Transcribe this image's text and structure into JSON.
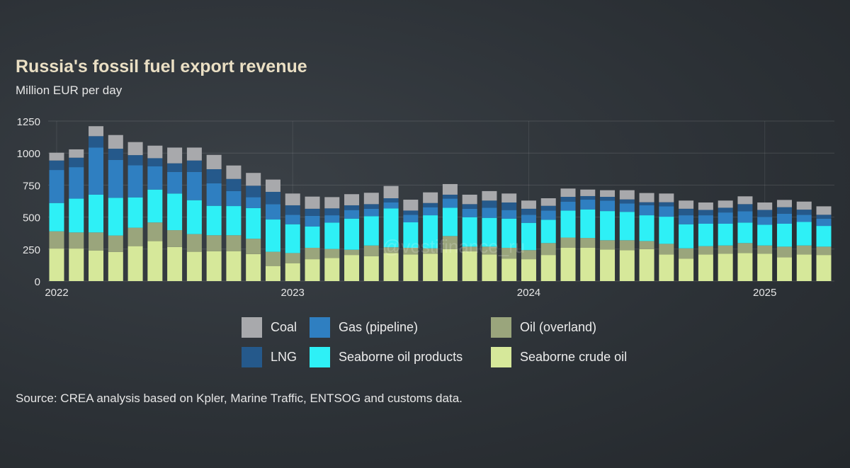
{
  "title": "Russia's fossil fuel export revenue",
  "subtitle": "Million EUR per day",
  "source": "Source: CREA analysis based on Kpler, Marine Traffic, ENTSOG and customs data.",
  "watermark": "@vestifinance_ru",
  "chart_data": {
    "type": "bar",
    "stacked": true,
    "title": "Russia's fossil fuel export revenue",
    "ylabel": "Million EUR per day",
    "xlabel": "",
    "ylim": [
      0,
      1250
    ],
    "yticks": [
      0,
      250,
      500,
      750,
      1000,
      1250
    ],
    "ytick_labels": [
      "0",
      "250",
      "500",
      "750",
      "1000",
      "1250"
    ],
    "xtick_labels": [
      {
        "label": "2022",
        "index": 0
      },
      {
        "label": "2023",
        "index": 12
      },
      {
        "label": "2024",
        "index": 24
      },
      {
        "label": "2025",
        "index": 36
      }
    ],
    "categories": [
      "2022-01",
      "2022-02",
      "2022-03",
      "2022-04",
      "2022-05",
      "2022-06",
      "2022-07",
      "2022-08",
      "2022-09",
      "2022-10",
      "2022-11",
      "2022-12",
      "2023-01",
      "2023-02",
      "2023-03",
      "2023-04",
      "2023-05",
      "2023-06",
      "2023-07",
      "2023-08",
      "2023-09",
      "2023-10",
      "2023-11",
      "2023-12",
      "2024-01",
      "2024-02",
      "2024-03",
      "2024-04",
      "2024-05",
      "2024-06",
      "2024-07",
      "2024-08",
      "2024-09",
      "2024-10",
      "2024-11",
      "2024-12",
      "2025-01",
      "2025-02",
      "2025-03",
      "2025-04"
    ],
    "grid": true,
    "legend_position": "bottom",
    "series": [
      {
        "name": "Seaborne crude oil",
        "color": "#d6e89a",
        "values": [
          254,
          254,
          238,
          227,
          273,
          312,
          266,
          229,
          233,
          234,
          211,
          118,
          140,
          171,
          180,
          204,
          195,
          219,
          208,
          213,
          250,
          232,
          208,
          176,
          171,
          204,
          260,
          260,
          247,
          241,
          250,
          208,
          176,
          208,
          213,
          219,
          213,
          186,
          208,
          204
        ]
      },
      {
        "name": "Oil (overland)",
        "color": "#9aa57c",
        "values": [
          135,
          126,
          142,
          129,
          144,
          146,
          132,
          138,
          125,
          124,
          120,
          111,
          79,
          89,
          71,
          41,
          83,
          45,
          52,
          43,
          102,
          37,
          61,
          84,
          71,
          93,
          80,
          77,
          72,
          78,
          63,
          83,
          80,
          65,
          65,
          78,
          65,
          83,
          70,
          65
        ]
      },
      {
        "name": "Seaborne oil products",
        "color": "#2ef0f6",
        "values": [
          221,
          264,
          295,
          295,
          237,
          257,
          286,
          265,
          230,
          228,
          239,
          252,
          225,
          166,
          206,
          243,
          229,
          304,
          199,
          258,
          221,
          230,
          225,
          228,
          213,
          182,
          211,
          223,
          228,
          222,
          201,
          212,
          188,
          175,
          170,
          160,
          162,
          179,
          184,
          162
        ]
      },
      {
        "name": "Gas (pipeline)",
        "color": "#2f7fc1",
        "values": [
          258,
          246,
          369,
          296,
          251,
          181,
          169,
          221,
          176,
          117,
          85,
          120,
          74,
          83,
          57,
          67,
          58,
          46,
          59,
          63,
          71,
          66,
          79,
          67,
          63,
          72,
          70,
          76,
          82,
          66,
          78,
          81,
          70,
          66,
          88,
          88,
          61,
          79,
          56,
          57
        ]
      },
      {
        "name": "LNG",
        "color": "#25598b",
        "values": [
          74,
          74,
          88,
          87,
          79,
          64,
          67,
          89,
          110,
          95,
          90,
          96,
          74,
          56,
          54,
          37,
          36,
          33,
          33,
          33,
          31,
          36,
          56,
          59,
          47,
          37,
          37,
          28,
          29,
          31,
          24,
          32,
          51,
          42,
          37,
          56,
          55,
          50,
          40,
          30
        ]
      },
      {
        "name": "Coal",
        "color": "#a8a9ac",
        "values": [
          61,
          65,
          78,
          107,
          102,
          98,
          123,
          101,
          112,
          105,
          100,
          96,
          92,
          95,
          88,
          87,
          89,
          96,
          85,
          83,
          83,
          74,
          74,
          70,
          64,
          59,
          65,
          51,
          52,
          72,
          72,
          68,
          64,
          58,
          56,
          61,
          58,
          57,
          63,
          66
        ]
      }
    ]
  },
  "legend": [
    {
      "label": "Coal",
      "color": "#a8a9ac"
    },
    {
      "label": "Gas (pipeline)",
      "color": "#2f7fc1"
    },
    {
      "label": "Oil (overland)",
      "color": "#9aa57c"
    },
    {
      "label": "LNG",
      "color": "#25598b"
    },
    {
      "label": "Seaborne oil products",
      "color": "#2ef0f6"
    },
    {
      "label": "Seaborne crude oil",
      "color": "#d6e89a"
    }
  ]
}
